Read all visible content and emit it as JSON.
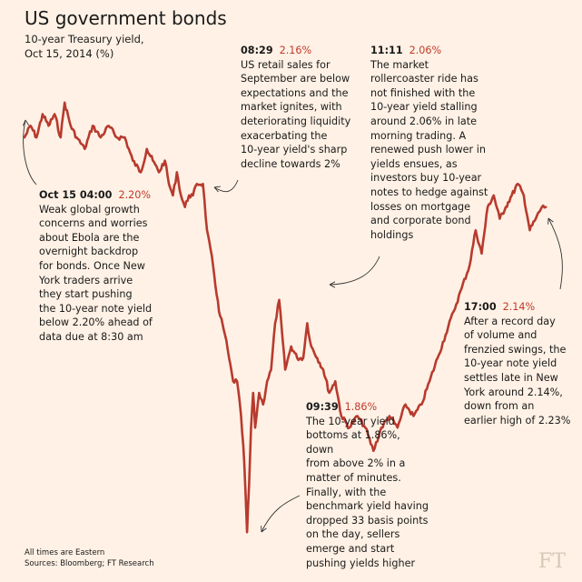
{
  "header": {
    "title": "US government bonds",
    "subtitle_line1": "10-year Treasury yield,",
    "subtitle_line2": "Oct 15, 2014 (%)"
  },
  "annotations": [
    {
      "time": "Oct 15 04:00",
      "value": "2.20%",
      "lines": [
        "Weak global growth",
        "concerns and worries",
        "about Ebola are the",
        "overnight backdrop",
        "for bonds. Once New",
        "York traders arrive",
        "they start pushing",
        "the 10-year note yield",
        "below 2.20% ahead of",
        "data due at 8:30 am"
      ]
    },
    {
      "time": "08:29",
      "value": "2.16%",
      "lines": [
        "US retail sales for",
        "September are below",
        "expectations and the",
        "market ignites, with",
        "deteriorating liquidity",
        "exacerbating the",
        "10-year yield's sharp",
        "decline towards 2%"
      ]
    },
    {
      "time": "11:11",
      "value": "2.06%",
      "lines": [
        "The market",
        "rollercoaster ride has",
        "not finished with the",
        "10-year yield stalling",
        "around 2.06% in late",
        "morning trading. A",
        "renewed push lower in",
        "yields ensues, as",
        "investors buy 10-year",
        "notes to hedge against",
        "losses on mortgage",
        "and corporate bond",
        "holdings"
      ]
    },
    {
      "time": "09:39",
      "value": "1.86%",
      "lines": [
        "The 10-year yield",
        "bottoms at 1.86%, down",
        "from above 2% in a",
        "matter of minutes.",
        "Finally, with the",
        "benchmark yield having",
        "dropped 33 basis points",
        "on the day, sellers",
        "emerge and start",
        "pushing yields higher"
      ]
    },
    {
      "time": "17:00",
      "value": "2.14%",
      "lines": [
        "After a record day",
        "of volume and",
        "frenzied swings, the",
        "10-year note yield",
        "settles late in New",
        "York around 2.14%,",
        "down from an",
        "earlier high of 2.23%"
      ]
    }
  ],
  "footer": {
    "note": "All times are Eastern",
    "sources": "Sources: Bloomberg; FT Research"
  },
  "logo": "FT",
  "colors": {
    "background": "#fff1e5",
    "line": "#b83a2e",
    "value_highlight": "#c0392b"
  },
  "chart_data": {
    "type": "line",
    "title": "US government bonds",
    "subtitle": "10-year Treasury yield, Oct 15, 2014 (%)",
    "xlabel": "",
    "ylabel": "",
    "axes_visible": false,
    "grid": false,
    "x_unit": "hour (Eastern time, Oct 15, 2014)",
    "xlim": [
      4.0,
      17.2
    ],
    "ylim": [
      1.85,
      2.24
    ],
    "series": [
      {
        "x": [
          4.0,
          4.15,
          4.3,
          4.45,
          4.6,
          4.75,
          4.9,
          5.0,
          5.15,
          5.3,
          5.5,
          5.7,
          5.9,
          6.1,
          6.3,
          6.5,
          6.7,
          6.9,
          7.05,
          7.2,
          7.35,
          7.5,
          7.6,
          7.7,
          7.8,
          7.9,
          8.0,
          8.1,
          8.2,
          8.3,
          8.45,
          8.55,
          8.7,
          8.85,
          9.0,
          9.1,
          9.2,
          9.3,
          9.4,
          9.48,
          9.55,
          9.6,
          9.65,
          9.7,
          9.75,
          9.85,
          9.95,
          10.05,
          10.15,
          10.25,
          10.35,
          10.5,
          10.65,
          10.8,
          10.95,
          11.05,
          11.15,
          11.3,
          11.45,
          11.6,
          11.75,
          11.9,
          12.1,
          12.3,
          12.5,
          12.7,
          12.9,
          13.1,
          13.3,
          13.5,
          13.7,
          13.9,
          14.1,
          14.3,
          14.5,
          14.7,
          14.9,
          15.1,
          15.25,
          15.4,
          15.55,
          15.7,
          15.85,
          16.0,
          16.15,
          16.3,
          16.45,
          16.6,
          16.75,
          16.9,
          17.0
        ],
        "values": [
          2.2,
          2.21,
          2.2,
          2.22,
          2.21,
          2.22,
          2.2,
          2.23,
          2.21,
          2.2,
          2.19,
          2.21,
          2.2,
          2.21,
          2.2,
          2.2,
          2.18,
          2.17,
          2.19,
          2.18,
          2.17,
          2.18,
          2.16,
          2.15,
          2.17,
          2.15,
          2.14,
          2.15,
          2.15,
          2.16,
          2.16,
          2.12,
          2.09,
          2.05,
          2.03,
          2.01,
          1.99,
          1.99,
          1.96,
          1.92,
          1.86,
          1.9,
          1.95,
          1.98,
          1.95,
          1.98,
          1.97,
          1.99,
          2.0,
          2.04,
          2.06,
          2.0,
          2.02,
          2.01,
          2.01,
          2.04,
          2.02,
          2.01,
          2.0,
          1.98,
          1.99,
          1.96,
          1.95,
          1.96,
          1.95,
          1.93,
          1.95,
          1.96,
          1.95,
          1.97,
          1.96,
          1.97,
          1.99,
          2.01,
          2.03,
          2.05,
          2.07,
          2.09,
          2.12,
          2.1,
          2.14,
          2.15,
          2.13,
          2.14,
          2.15,
          2.16,
          2.15,
          2.12,
          2.13,
          2.14,
          2.14
        ]
      }
    ]
  }
}
